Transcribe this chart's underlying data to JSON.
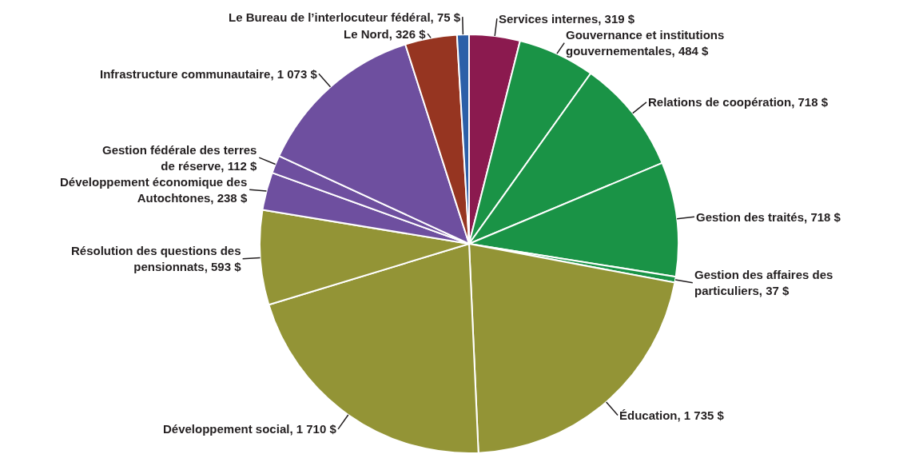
{
  "chart_data": {
    "type": "pie",
    "categories": [
      "Services internes",
      "Gouvernance et institutions gouvernementales",
      "Relations de coopération",
      "Gestion des traités",
      "Gestion des affaires des particuliers",
      "Éducation",
      "Développement social",
      "Résolution des questions des pensionnats",
      "Développement économique des Autochtones",
      "Gestion fédérale des terres de réserve",
      "Infrastructure communautaire",
      "Le Nord",
      "Le Bureau de l’interlocuteur fédéral"
    ],
    "values": [
      319,
      484,
      718,
      718,
      37,
      1735,
      1710,
      593,
      238,
      112,
      1073,
      326,
      75
    ],
    "value_labels": [
      "319 $",
      "484 $",
      "718 $",
      "718 $",
      "37 $",
      "1 735 $",
      "1 710 $",
      "593 $",
      "238 $",
      "112 $",
      "1 073 $",
      "326 $",
      "75 $"
    ],
    "colors": [
      "#8b1a4f",
      "#1a9346",
      "#1a9346",
      "#1a9346",
      "#1a9346",
      "#939436",
      "#939436",
      "#939436",
      "#6e4f9f",
      "#6e4f9f",
      "#6e4f9f",
      "#963521",
      "#2c5fa8"
    ]
  }
}
